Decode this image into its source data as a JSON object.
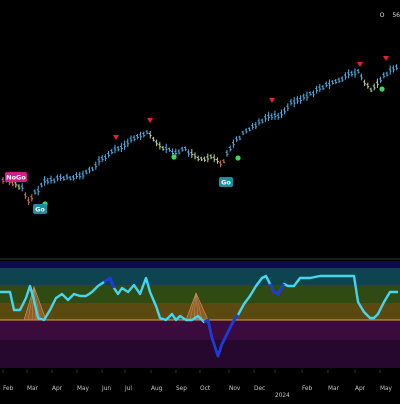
{
  "header": {
    "price_value": "56",
    "ohlc_symbol": "O"
  },
  "colors": {
    "background": "#000000",
    "bar_go": "#55aee8",
    "bar_transition": "#b8d49a",
    "bar_nogo": "#d8734a",
    "go_dot": "#3ed65e",
    "sell_arrow": "#e8202a",
    "osc_line": "#45d6f0",
    "osc_line_dark": "#1a3adf",
    "zero_line": "#d9a441"
  },
  "chart_data": [
    {
      "type": "bar",
      "title": "",
      "xlabel": "",
      "ylabel": "",
      "x_ticks": [
        "Feb",
        "Mar",
        "Apr",
        "May",
        "Jun",
        "Jul",
        "Aug",
        "Sep",
        "Oct",
        "Nov",
        "Dec",
        "2024",
        "Feb",
        "Mar",
        "Apr",
        "May"
      ],
      "annotations": [
        {
          "label": "NoGo",
          "bg": "#d61a87"
        },
        {
          "label": "Go",
          "bg": "#1e8fa0"
        },
        {
          "label": "Go",
          "bg": "#1e8fa0"
        }
      ]
    },
    {
      "type": "line",
      "title": "",
      "xlabel": "",
      "ylabel": "",
      "zones": [
        "#0b0b52",
        "#0e4450",
        "#2f4a12",
        "#5b4a10",
        "#3b0b3d",
        "#26082e"
      ]
    }
  ],
  "labels": {
    "nogo": "NoGo",
    "go1": "Go",
    "go2": "Go"
  }
}
